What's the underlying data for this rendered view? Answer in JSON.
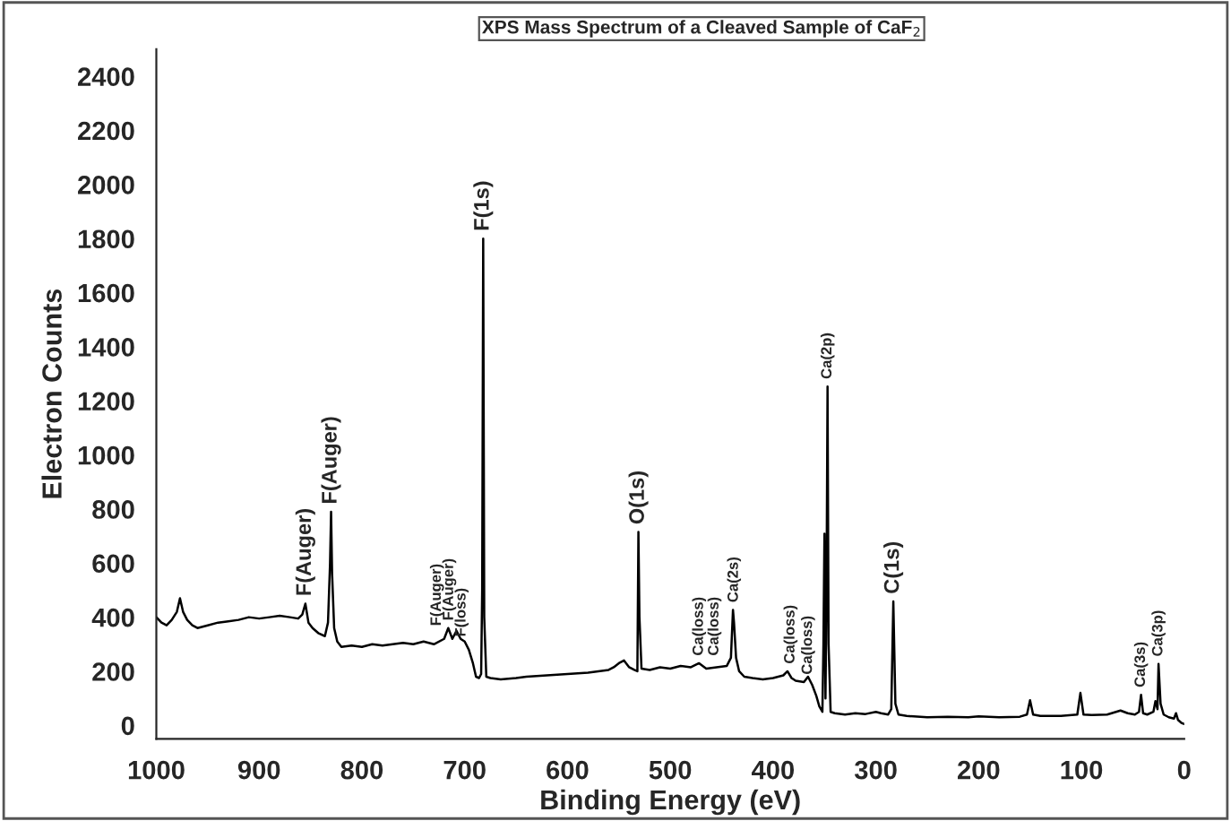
{
  "chart_data": {
    "type": "line",
    "title": "XPS Mass Spectrum of a Cleaved Sample of CaF$_{2}$",
    "xlabel": "Binding Energy (eV)",
    "ylabel": "Electron Counts",
    "series": [
      {
        "color": "#000000",
        "x": [
          1000,
          995,
          990,
          985,
          980,
          977,
          974,
          970,
          965,
          960,
          950,
          940,
          930,
          920,
          910,
          900,
          890,
          880,
          870,
          862,
          858,
          855,
          852,
          848,
          842,
          836,
          833,
          831,
          830,
          829,
          827,
          824,
          820,
          810,
          800,
          790,
          780,
          770,
          760,
          750,
          740,
          730,
          720,
          716,
          712,
          708,
          704,
          700,
          696,
          692,
          689,
          686,
          684,
          683,
          682,
          681,
          679,
          675,
          665,
          650,
          640,
          620,
          600,
          580,
          560,
          555,
          550,
          545,
          540,
          535,
          532,
          531,
          530,
          528,
          520,
          510,
          500,
          490,
          480,
          472,
          465,
          455,
          445,
          441,
          439,
          438,
          436,
          433,
          428,
          420,
          410,
          400,
          390,
          386,
          382,
          378,
          370,
          366,
          362,
          358,
          355,
          352,
          351,
          350,
          349,
          348,
          347,
          346,
          344,
          340,
          330,
          320,
          310,
          300,
          295,
          288,
          285,
          283,
          281,
          278,
          270,
          250,
          230,
          210,
          200,
          180,
          160,
          153,
          150,
          147,
          140,
          120,
          104,
          101,
          98,
          90,
          75,
          62,
          55,
          48,
          44,
          42,
          40,
          36,
          30,
          28,
          26,
          25,
          23,
          20,
          15,
          10,
          8,
          6,
          3,
          0
        ],
        "values": [
          400,
          380,
          370,
          390,
          420,
          470,
          420,
          390,
          370,
          360,
          370,
          380,
          385,
          390,
          400,
          395,
          400,
          405,
          400,
          395,
          410,
          450,
          380,
          360,
          340,
          330,
          380,
          600,
          790,
          560,
          360,
          310,
          290,
          295,
          290,
          300,
          295,
          300,
          305,
          300,
          310,
          300,
          320,
          360,
          320,
          350,
          320,
          310,
          280,
          230,
          180,
          175,
          190,
          500,
          1800,
          400,
          180,
          175,
          170,
          175,
          180,
          185,
          190,
          195,
          205,
          215,
          230,
          240,
          215,
          205,
          200,
          715,
          400,
          210,
          205,
          215,
          210,
          220,
          215,
          230,
          210,
          215,
          220,
          250,
          427,
          380,
          250,
          200,
          180,
          175,
          170,
          175,
          185,
          200,
          175,
          165,
          160,
          180,
          150,
          110,
          70,
          50,
          300,
          709,
          100,
          500,
          1253,
          300,
          50,
          45,
          40,
          45,
          42,
          50,
          45,
          40,
          60,
          458,
          80,
          40,
          35,
          30,
          32,
          30,
          33,
          30,
          32,
          40,
          93,
          40,
          35,
          35,
          40,
          120,
          40,
          38,
          40,
          55,
          45,
          40,
          50,
          113,
          45,
          40,
          50,
          90,
          60,
          227,
          80,
          40,
          30,
          25,
          45,
          20,
          10,
          5
        ]
      }
    ],
    "annotations": [
      {
        "text": "F(Auger)",
        "x": 855,
        "y": 450
      },
      {
        "text": "F(Auger)",
        "x": 830,
        "y": 790
      },
      {
        "text": "F(Auger)",
        "x": 727,
        "y": 340
      },
      {
        "text": "F(Auger)",
        "x": 715,
        "y": 360
      },
      {
        "text": "F(loss)",
        "x": 703,
        "y": 300
      },
      {
        "text": "F(1s)",
        "x": 682,
        "y": 1800
      },
      {
        "text": "O(1s)",
        "x": 531,
        "y": 715
      },
      {
        "text": "Ca(loss)",
        "x": 472,
        "y": 230
      },
      {
        "text": "Ca(loss)",
        "x": 457,
        "y": 230
      },
      {
        "text": "Ca(2s)",
        "x": 438,
        "y": 427
      },
      {
        "text": "Ca(loss)",
        "x": 383,
        "y": 200
      },
      {
        "text": "Ca(loss)",
        "x": 366,
        "y": 160
      },
      {
        "text": "Ca(2p)",
        "x": 347,
        "y": 1253
      },
      {
        "text": "C(1s)",
        "x": 283,
        "y": 458
      },
      {
        "text": "Ca(3s)",
        "x": 42,
        "y": 113
      },
      {
        "text": "Ca(3p)",
        "x": 25,
        "y": 227
      }
    ],
    "xlim": [
      1000,
      0
    ],
    "xticks": [
      1000,
      900,
      800,
      700,
      600,
      500,
      400,
      300,
      200,
      100,
      0
    ],
    "ylim": [
      -50,
      2500
    ],
    "yticks": [
      0,
      200,
      400,
      600,
      800,
      1000,
      1200,
      1400,
      1600,
      1800,
      2000,
      2200,
      2400
    ],
    "grid": false,
    "legend": false,
    "line_style": "solid",
    "marker": "none"
  }
}
